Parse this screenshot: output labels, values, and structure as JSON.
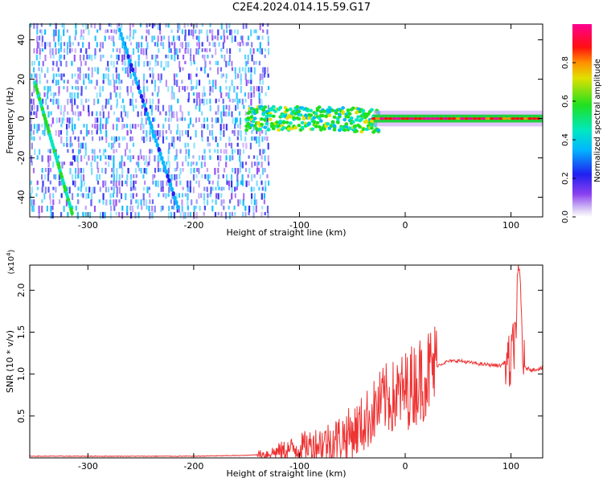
{
  "title": "C2E4.2024.014.15.59.G17",
  "colors": {
    "snr_line": "#ee3333",
    "frame": "#000000"
  },
  "chart_data": [
    {
      "type": "heatmap",
      "xlabel": "Height of straight line (km)",
      "ylabel": "Frequency (Hz)",
      "xlim": [
        -355,
        130
      ],
      "ylim": [
        -50,
        48
      ],
      "xticks": [
        -300,
        -200,
        -100,
        0,
        100
      ],
      "yticks": [
        -40,
        -20,
        0,
        20,
        40
      ],
      "grid": false,
      "colorbar": {
        "label": "Normalized spectral amplitude",
        "range": [
          0.0,
          1.0
        ],
        "ticks": [
          "0.0",
          "0.2",
          "0.4",
          "0.6",
          "0.8"
        ],
        "colormap": "rainbow (white → violet → blue → cyan → green → yellow → red → magenta)"
      },
      "features": [
        {
          "name": "noise-field",
          "x": [
            -355,
            -130
          ],
          "freq_range": [
            -50,
            48
          ],
          "amplitude": [
            0.05,
            0.35
          ]
        },
        {
          "name": "diagonal-track",
          "x_start": -350,
          "f_start": 18,
          "x_end": -315,
          "f_end": -48,
          "amplitude": 0.45
        },
        {
          "name": "faint-diagonal-track",
          "x_start": -270,
          "f_start": 45,
          "x_end": -215,
          "f_end": -45,
          "amplitude": 0.25
        },
        {
          "name": "central-band",
          "x": [
            -150,
            -25
          ],
          "freq_center": 0,
          "half_width": 6,
          "amplitude": [
            0.3,
            0.65
          ]
        },
        {
          "name": "signal-line",
          "x": [
            -30,
            130
          ],
          "freq_center": 0,
          "half_width": 2,
          "amplitude": [
            0.75,
            0.95
          ]
        }
      ]
    },
    {
      "type": "line",
      "xlabel": "Height of straight line (km)",
      "ylabel": "SNR (10 * v/v)",
      "y_multiplier": "(x10",
      "y_multiplier_exp": "4",
      "y_multiplier_close": ")",
      "xlim": [
        -355,
        130
      ],
      "ylim": [
        0,
        2.3
      ],
      "xticks": [
        -300,
        -200,
        -100,
        0,
        100
      ],
      "yticks": [
        0.5,
        1.0,
        1.5,
        2.0
      ],
      "ytick_labels": [
        "0.5",
        "1.0",
        "1.5",
        "2.0"
      ],
      "grid": false,
      "series": [
        {
          "color": "#ee3333",
          "x": [
            -355,
            -300,
            -250,
            -200,
            -150,
            -130,
            -110,
            -90,
            -70,
            -50,
            -40,
            -30,
            -20,
            -10,
            0,
            10,
            20,
            30,
            40,
            50,
            60,
            70,
            80,
            90,
            95,
            100,
            104,
            108,
            112,
            120,
            130
          ],
          "y": [
            0.02,
            0.02,
            0.02,
            0.02,
            0.03,
            0.05,
            0.1,
            0.15,
            0.2,
            0.3,
            0.4,
            0.55,
            0.7,
            0.72,
            0.8,
            0.9,
            1.0,
            1.1,
            1.15,
            1.16,
            1.14,
            1.12,
            1.11,
            1.1,
            1.15,
            1.1,
            1.5,
            2.25,
            1.08,
            1.05,
            1.07
          ]
        }
      ]
    }
  ]
}
